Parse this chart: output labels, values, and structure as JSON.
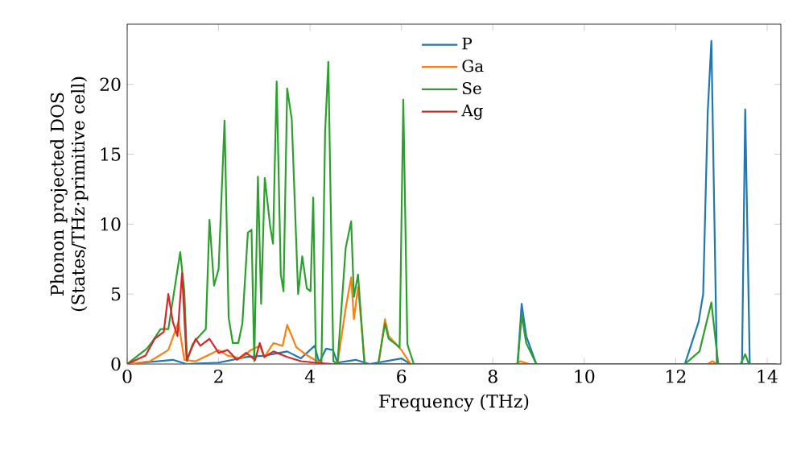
{
  "chart_data": {
    "type": "line",
    "xlabel": "Frequency (THz)",
    "ylabel": "Phonon projected DOS (States/THz·primitive cell)",
    "xlim": [
      0,
      14.3
    ],
    "ylim": [
      0,
      24.3
    ],
    "xticks": [
      0,
      2,
      4,
      6,
      8,
      10,
      12,
      14
    ],
    "yticks": [
      0,
      5,
      10,
      15,
      20
    ],
    "legend": "top",
    "grid": false,
    "marker": "none",
    "line_style": "solid",
    "series": [
      {
        "name": "P",
        "color": "#1f77b4",
        "x": [
          0,
          1.0,
          1.3,
          2.0,
          2.6,
          3.0,
          3.5,
          3.8,
          4.1,
          4.2,
          4.35,
          4.5,
          4.6,
          5.0,
          5.3,
          6.0,
          6.2,
          8.54,
          8.63,
          8.73,
          8.95,
          12.2,
          12.5,
          12.6,
          12.7,
          12.78,
          12.9,
          13.45,
          13.52,
          13.62,
          14.2
        ],
        "values": [
          0,
          0.3,
          0,
          0.1,
          0.5,
          0.6,
          0.9,
          0.4,
          1.3,
          0.1,
          1.1,
          1.0,
          0.1,
          0.3,
          0,
          0.4,
          0,
          0,
          4.3,
          2.0,
          0,
          0,
          3.0,
          5.0,
          18,
          23.1,
          0,
          0,
          18.2,
          0,
          0
        ]
      },
      {
        "name": "Ga",
        "color": "#ff7f0e",
        "x": [
          0,
          0.5,
          0.9,
          1.12,
          1.25,
          1.5,
          2.0,
          2.2,
          2.5,
          2.7,
          2.9,
          3.0,
          3.2,
          3.4,
          3.5,
          3.7,
          3.9,
          4.1,
          4.3,
          4.6,
          4.78,
          4.9,
          4.96,
          5.05,
          5.2,
          5.5,
          5.64,
          5.72,
          6.0,
          6.2,
          8.5,
          8.6,
          8.8,
          12.7,
          12.8,
          12.9,
          14.2
        ],
        "values": [
          0,
          0.2,
          1.0,
          3.0,
          0.3,
          0.2,
          1.0,
          0.6,
          0.4,
          1.0,
          1.3,
          0.5,
          1.5,
          1.3,
          2.8,
          1.2,
          0.7,
          0.3,
          0,
          0,
          4.0,
          6.2,
          3.2,
          5.5,
          0,
          0,
          3.2,
          2.0,
          1.0,
          0,
          0,
          0.2,
          0,
          0,
          0.2,
          0,
          0
        ]
      },
      {
        "name": "Se",
        "color": "#2ca02c",
        "x": [
          0,
          0.43,
          0.55,
          0.73,
          0.9,
          1.16,
          1.25,
          1.31,
          1.43,
          1.55,
          1.72,
          1.8,
          1.9,
          2.0,
          2.13,
          2.22,
          2.31,
          2.43,
          2.52,
          2.64,
          2.72,
          2.78,
          2.86,
          2.93,
          3.01,
          3.13,
          3.19,
          3.27,
          3.36,
          3.42,
          3.5,
          3.6,
          3.74,
          3.83,
          3.93,
          4.01,
          4.07,
          4.13,
          4.25,
          4.33,
          4.4,
          4.51,
          4.6,
          4.78,
          4.9,
          4.96,
          5.05,
          5.19,
          5.49,
          5.64,
          5.72,
          5.96,
          6.04,
          6.13,
          6.27,
          8.54,
          8.63,
          8.73,
          8.95,
          12.2,
          12.52,
          12.78,
          12.93,
          13.42,
          13.52,
          13.6,
          14.2
        ],
        "values": [
          0,
          1.1,
          1.6,
          2.5,
          2.5,
          8.0,
          5.2,
          0.2,
          1.4,
          1.9,
          2.5,
          10.3,
          5.6,
          6.8,
          17.4,
          3.3,
          1.5,
          1.5,
          2.9,
          9.4,
          9.6,
          0.2,
          13.4,
          4.3,
          13.3,
          9.8,
          8.6,
          20.2,
          6.4,
          5.2,
          19.7,
          17.5,
          5.0,
          7.7,
          5.4,
          5.2,
          11.9,
          0,
          0,
          16.6,
          21.6,
          0.2,
          0,
          8.3,
          10.2,
          4.8,
          6.4,
          0,
          0,
          2.9,
          1.8,
          1.2,
          18.9,
          1.4,
          0,
          0,
          3.5,
          1.5,
          0,
          0,
          0.9,
          4.4,
          0,
          0,
          0.7,
          0,
          0
        ]
      },
      {
        "name": "Ag",
        "color": "#d62728",
        "x": [
          0,
          0.4,
          0.6,
          0.8,
          0.9,
          1.0,
          1.1,
          1.2,
          1.3,
          1.5,
          1.6,
          1.8,
          2.0,
          2.2,
          2.4,
          2.6,
          2.8,
          2.9,
          3.0,
          3.2,
          3.5,
          3.8,
          4.1,
          4.5,
          5.0,
          14.2
        ],
        "values": [
          0,
          0.6,
          1.8,
          2.3,
          5.0,
          3.0,
          2.0,
          6.5,
          0.3,
          1.8,
          1.3,
          1.8,
          0.8,
          1.0,
          0.3,
          0.8,
          0.3,
          1.5,
          0.5,
          0.9,
          0.5,
          0.2,
          0.1,
          0,
          0,
          0
        ]
      }
    ]
  }
}
